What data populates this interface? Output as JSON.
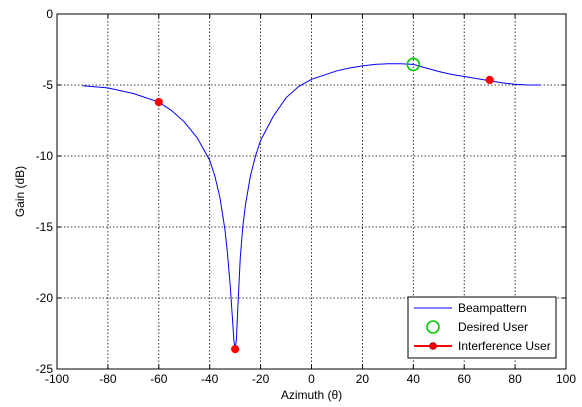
{
  "chart_data": {
    "type": "line",
    "xlabel": "Azimuth (θ)",
    "ylabel": "Gain (dB)",
    "xlim": [
      -100,
      100
    ],
    "ylim": [
      -25,
      0
    ],
    "x_ticks": [
      -100,
      -80,
      -60,
      -40,
      -20,
      0,
      20,
      40,
      60,
      80,
      100
    ],
    "y_ticks": [
      0,
      -5,
      -10,
      -15,
      -20,
      -25
    ],
    "grid": true,
    "legend_position": "bottom-right",
    "series": [
      {
        "name": "Beampattern",
        "color": "#0000ff",
        "x": [
          -90,
          -80,
          -70,
          -60,
          -55,
          -50,
          -45,
          -40,
          -38,
          -36,
          -34,
          -33,
          -32,
          -31,
          -30.5,
          -30,
          -29.5,
          -29,
          -28,
          -27,
          -26,
          -24,
          -22,
          -20,
          -15,
          -10,
          -5,
          0,
          5,
          10,
          15,
          20,
          25,
          30,
          35,
          40,
          45,
          50,
          55,
          60,
          65,
          70,
          75,
          80,
          85,
          90
        ],
        "y": [
          -5.05,
          -5.2,
          -5.6,
          -6.2,
          -6.8,
          -7.6,
          -8.7,
          -10.3,
          -11.4,
          -12.9,
          -15.2,
          -16.9,
          -19.0,
          -21.6,
          -23.0,
          -23.6,
          -22.9,
          -20.9,
          -17.2,
          -15.0,
          -13.5,
          -11.4,
          -10.0,
          -8.9,
          -7.2,
          -5.9,
          -5.1,
          -4.6,
          -4.3,
          -4.0,
          -3.8,
          -3.65,
          -3.55,
          -3.5,
          -3.5,
          -3.55,
          -3.8,
          -4.05,
          -4.25,
          -4.4,
          -4.55,
          -4.7,
          -4.85,
          -4.95,
          -5.0,
          -5.0
        ]
      },
      {
        "name": "Desired User",
        "color": "#00cc00",
        "marker": "circle",
        "x": [
          40
        ],
        "y": [
          -3.55
        ]
      },
      {
        "name": "Interference User",
        "color": "#ff0000",
        "marker": "filled-circle",
        "x": [
          -60,
          -30,
          70
        ],
        "y": [
          -6.2,
          -23.6,
          -4.65
        ]
      }
    ]
  }
}
